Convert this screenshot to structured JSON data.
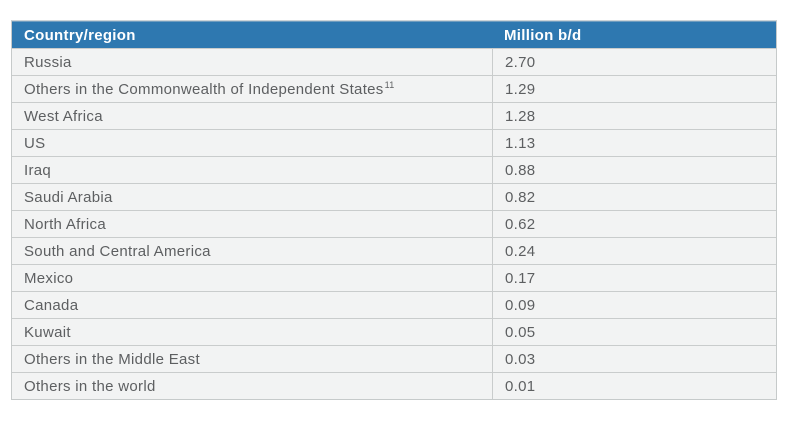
{
  "chart_data": {
    "type": "table",
    "columns": [
      "Country/region",
      "Million b/d"
    ],
    "header_bg": "#2e78b0",
    "header_text_color": "#ffffff",
    "row_bg": "#f2f3f3",
    "divider_color": "#c9cccc",
    "body_text_color": "#5d5f61",
    "rows": [
      {
        "country": "Russia",
        "value": "2.70"
      },
      {
        "country": "Others in the Commonwealth of Independent States",
        "sup": "11",
        "value": "1.29"
      },
      {
        "country": "West Africa",
        "value": "1.28"
      },
      {
        "country": "US",
        "value": "1.13"
      },
      {
        "country": "Iraq",
        "value": "0.88"
      },
      {
        "country": "Saudi Arabia",
        "value": "0.82"
      },
      {
        "country": "North Africa",
        "value": "0.62"
      },
      {
        "country": "South and Central America",
        "value": "0.24"
      },
      {
        "country": "Mexico",
        "value": "0.17"
      },
      {
        "country": "Canada",
        "value": "0.09"
      },
      {
        "country": "Kuwait",
        "value": "0.05"
      },
      {
        "country": "Others in the Middle East",
        "value": "0.03"
      },
      {
        "country": "Others in the world",
        "value": "0.01"
      }
    ]
  }
}
